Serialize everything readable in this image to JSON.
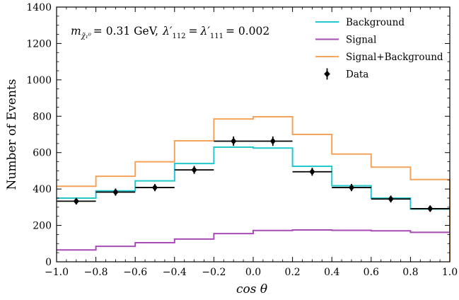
{
  "chart_data": {
    "type": "line",
    "title": "",
    "xlabel": "cos θ",
    "ylabel": "Number of Events",
    "xlim": [
      -1.0,
      1.0
    ],
    "ylim": [
      0,
      1400
    ],
    "x_ticks": [
      "−1.0",
      "−0.8",
      "−0.6",
      "−0.4",
      "−0.2",
      "0.0",
      "0.2",
      "0.4",
      "0.6",
      "0.8",
      "1.0"
    ],
    "y_ticks": [
      "0",
      "200",
      "400",
      "600",
      "800",
      "1000",
      "1200",
      "1400"
    ],
    "bin_edges": [
      -1.0,
      -0.8,
      -0.6,
      -0.4,
      -0.2,
      0.0,
      0.2,
      0.4,
      0.6,
      0.8,
      1.0
    ],
    "series": [
      {
        "name": "Background",
        "style": "step",
        "color": "#22c8cc",
        "values": [
          350,
          390,
          445,
          540,
          630,
          625,
          525,
          418,
          350,
          290
        ]
      },
      {
        "name": "Signal",
        "style": "step",
        "color": "#a64cb4",
        "values": [
          65,
          85,
          105,
          125,
          155,
          172,
          175,
          173,
          170,
          162
        ]
      },
      {
        "name": "Signal+Background",
        "style": "step",
        "color": "#f5a35a",
        "values": [
          415,
          470,
          550,
          665,
          785,
          797,
          700,
          592,
          520,
          452
        ]
      },
      {
        "name": "Data",
        "style": "errorbar",
        "color": "#000000",
        "x": [
          -0.9,
          -0.7,
          -0.5,
          -0.3,
          -0.1,
          0.1,
          0.3,
          0.5,
          0.7,
          0.9
        ],
        "values": [
          333,
          383,
          408,
          505,
          663,
          663,
          495,
          408,
          345,
          292
        ],
        "yerr": [
          18,
          20,
          20,
          22,
          26,
          26,
          22,
          20,
          19,
          17
        ]
      }
    ],
    "annotation": {
      "m_symbol": "m",
      "m_subscript": "χ̃₁⁰",
      "m_value": "= 0.31 GeV,",
      "l1_symbol": "λ′",
      "l1_subscript": "112",
      "equals": "=",
      "l2_symbol": "λ′",
      "l2_subscript": "111",
      "l2_value": "= 0.002"
    },
    "legend_position": "top-right",
    "grid": false
  }
}
